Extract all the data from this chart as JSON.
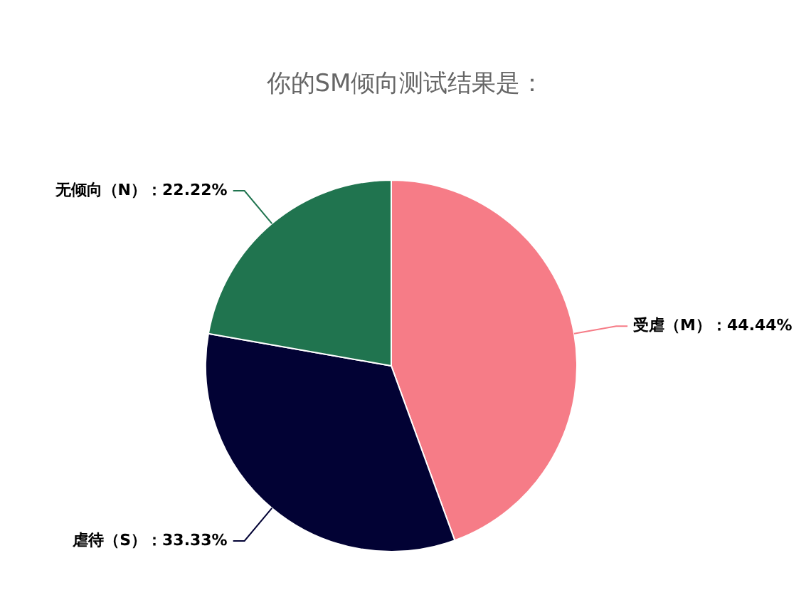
{
  "chart_data": {
    "type": "pie",
    "title": "你的SM倾向测试结果是：",
    "categories": [
      "受虐（M）",
      "虐待（S）",
      "无倾向（N）"
    ],
    "values": [
      44.44,
      33.33,
      22.22
    ],
    "value_labels": [
      "44.44%",
      "33.33%",
      "22.22%"
    ],
    "colors": [
      "#f67c87",
      "#020234",
      "#20744f"
    ],
    "legend": false
  }
}
